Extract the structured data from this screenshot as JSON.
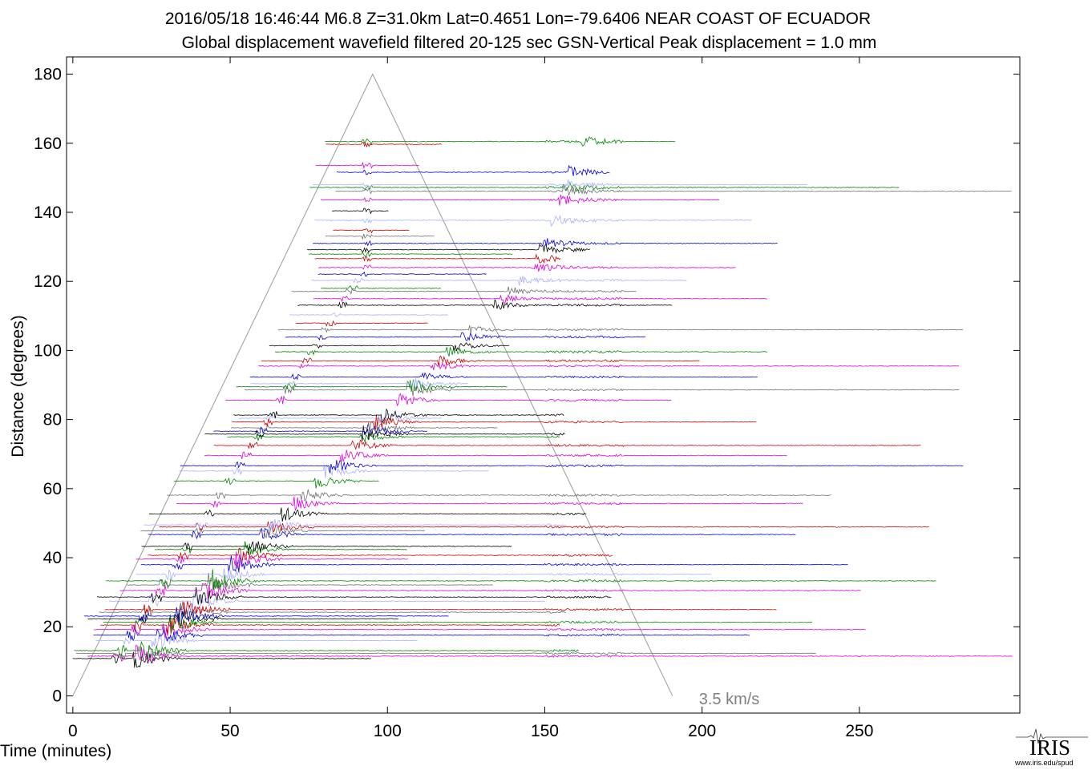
{
  "header": {
    "title_line1": "2016/05/18  16:46:44  M6.8  Z=31.0km  Lat=0.4651 Lon=-79.6406  NEAR COAST OF ECUADOR",
    "title_line2": "Global displacement wavefield     filtered 20-125 sec     GSN-Vertical     Peak displacement = 1.0 mm"
  },
  "chart_data": {
    "type": "line",
    "title": "2016/05/18  16:46:44  M6.8  Z=31.0km  Lat=0.4651 Lon=-79.6406  NEAR COAST OF ECUADOR",
    "subtitle": "Global displacement wavefield     filtered 20-125 sec     GSN-Vertical     Peak displacement = 1.0 mm",
    "xlabel": "Time (minutes)",
    "ylabel": "Distance (degrees)",
    "xlim": [
      -2,
      301
    ],
    "ylim": [
      -5,
      185
    ],
    "xticks": [
      0,
      50,
      100,
      150,
      200,
      250
    ],
    "yticks": [
      0,
      20,
      40,
      60,
      80,
      100,
      120,
      140,
      160,
      180
    ],
    "grid": false,
    "trace_colors": [
      "#000000",
      "#cc0000",
      "#0000dd",
      "#008800",
      "#dd00dd",
      "#aab0ff",
      "#707070"
    ],
    "trace_distances": [
      10.8,
      11.5,
      12.3,
      13.1,
      16.0,
      17.6,
      19.2,
      20.5,
      21.3,
      22.3,
      23.1,
      24.2,
      25.0,
      27.4,
      28.6,
      30.5,
      32.1,
      33.3,
      35.2,
      38.0,
      39.6,
      40.7,
      42.4,
      43.3,
      46.7,
      47.8,
      48.9,
      49.5,
      52.7,
      55.7,
      58.1,
      62.2,
      65.1,
      66.6,
      69.6,
      72.5,
      75.0,
      75.8,
      76.6,
      77.6,
      79.3,
      80.4,
      81.3,
      85.6,
      88.6,
      89.5,
      90.4,
      92.3,
      95.5,
      97.0,
      99.6,
      101.4,
      103.9,
      106.0,
      107.9,
      110.3,
      113.1,
      115.0,
      117.1,
      118.0,
      120.3,
      122.1,
      124.0,
      126.6,
      127.9,
      129.2,
      131.0,
      133.1,
      134.8,
      137.7,
      140.4,
      143.6,
      146.1,
      147.2,
      148.0,
      151.6,
      153.6,
      159.7,
      160.5
    ],
    "reference_line": {
      "label": "3.5 km/s",
      "points": [
        [
          0,
          0
        ],
        [
          95.3,
          180
        ],
        [
          190.6,
          0
        ]
      ]
    }
  },
  "branding": {
    "logo_word": "IRIS",
    "logo_url": "www.iris.edu/spud"
  }
}
